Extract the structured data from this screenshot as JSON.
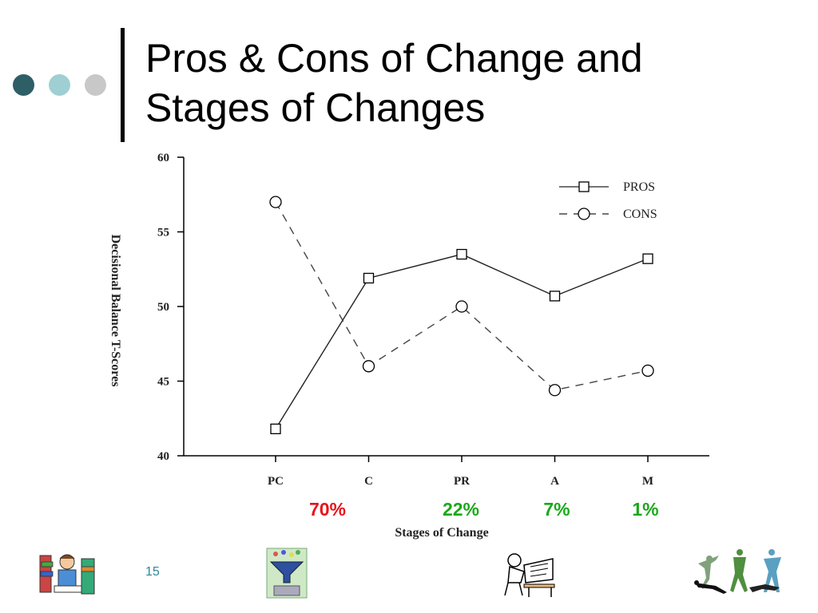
{
  "slide": {
    "title_line1": "Pros & Cons of Change and",
    "title_line2": "Stages of Changes",
    "page_number": "15",
    "dot_colors": [
      "#2e5f67",
      "#9fcfd3",
      "#c8c8c8"
    ]
  },
  "chart_data": {
    "type": "line",
    "title": "",
    "xlabel": "Stages of Change",
    "ylabel": "Decisional Balance T-Scores",
    "categories": [
      "PC",
      "C",
      "PR",
      "A",
      "M"
    ],
    "ylim": [
      40,
      60
    ],
    "yticks": [
      40,
      45,
      50,
      55,
      60
    ],
    "grid": false,
    "legend": "top-right",
    "series": [
      {
        "name": "PROS",
        "marker": "square",
        "dash": "solid",
        "values": [
          41.8,
          51.9,
          53.5,
          50.7,
          53.2
        ]
      },
      {
        "name": "CONS",
        "marker": "circle",
        "dash": "dashed",
        "values": [
          57.0,
          46.0,
          50.0,
          44.4,
          45.7
        ]
      }
    ],
    "annotations": [
      {
        "text": "70%",
        "color": "#e8141a",
        "category": "PC"
      },
      {
        "text": "22%",
        "color": "#1aa81a",
        "category": "PR"
      },
      {
        "text": "7%",
        "color": "#1aa81a",
        "category": "A"
      },
      {
        "text": "1%",
        "color": "#1aa81a",
        "category": "M"
      }
    ]
  }
}
